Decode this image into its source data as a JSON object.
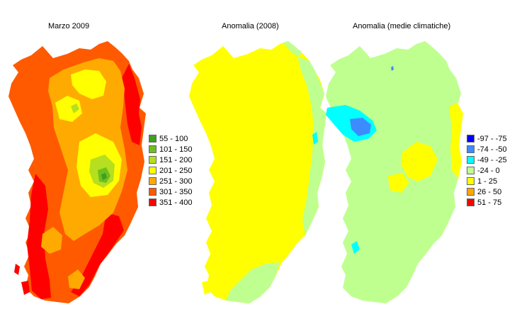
{
  "panels": [
    {
      "title": "Marzo 2009",
      "legend": [
        {
          "label": "55 - 100",
          "color": "#3f9f1f"
        },
        {
          "label": "101 - 150",
          "color": "#6fbf1f"
        },
        {
          "label": "151 - 200",
          "color": "#b5df1f"
        },
        {
          "label": "201 - 250",
          "color": "#ffff00"
        },
        {
          "label": "251 - 300",
          "color": "#ffaa00"
        },
        {
          "label": "301 - 350",
          "color": "#ff5a00"
        },
        {
          "label": "351 - 400",
          "color": "#ff0000"
        }
      ]
    },
    {
      "title": "Anomalia (2008)"
    },
    {
      "title": "Anomalia (medie climatiche)",
      "legend": [
        {
          "label": "-97 - -75",
          "color": "#0000ff"
        },
        {
          "label": "-74 - -50",
          "color": "#3c8cff"
        },
        {
          "label": "-49 - -25",
          "color": "#00ffff"
        },
        {
          "label": "-24 - 0",
          "color": "#bfff8f"
        },
        {
          "label": "1 - 25",
          "color": "#ffff00"
        },
        {
          "label": "26 - 50",
          "color": "#ffa500"
        },
        {
          "label": "51 - 75",
          "color": "#ff0000"
        }
      ]
    }
  ]
}
